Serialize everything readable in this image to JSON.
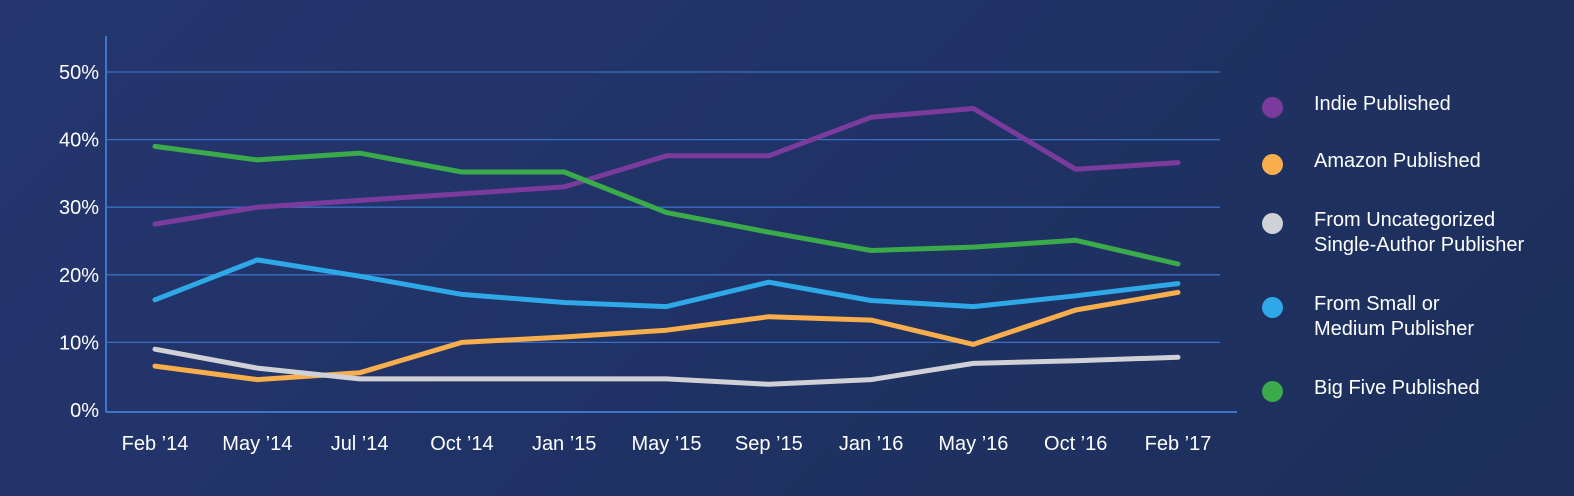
{
  "chart_data": {
    "type": "line",
    "categories": [
      "Feb ’14",
      "May ’14",
      "Jul ’14",
      "Oct ’14",
      "Jan ’15",
      "May ’15",
      "Sep ’15",
      "Jan ’16",
      "May ’16",
      "Oct ’16",
      "Feb ’17"
    ],
    "y_ticks": [
      "0%",
      "10%",
      "20%",
      "30%",
      "40%",
      "50%"
    ],
    "ylim": [
      0,
      55
    ],
    "grid": true,
    "legend_position": "right",
    "series": [
      {
        "name": "Indie Published",
        "color": "#7a3b9c",
        "values": [
          27.5,
          30,
          31,
          32,
          33,
          37.6,
          37.6,
          43.3,
          44.6,
          35.6,
          36.6
        ]
      },
      {
        "name": "Amazon Published",
        "color": "#f8ae4c",
        "values": [
          6.5,
          4.5,
          5.5,
          10,
          10.8,
          11.8,
          13.8,
          13.3,
          9.7,
          14.8,
          17.4
        ]
      },
      {
        "name": "From Uncategorized Single-Author Publisher",
        "label_lines": [
          "From Uncategorized",
          "Single-Author Publisher"
        ],
        "color": "#cfd1d6",
        "values": [
          9,
          6.2,
          4.6,
          4.6,
          4.6,
          4.6,
          3.8,
          4.5,
          6.9,
          7.3,
          7.8
        ]
      },
      {
        "name": "From Small or Medium Publisher",
        "label_lines": [
          "From Small or",
          "Medium Publisher"
        ],
        "color": "#2ea8e6",
        "values": [
          16.3,
          22.2,
          19.8,
          17.1,
          15.9,
          15.3,
          18.9,
          16.2,
          15.3,
          16.9,
          18.7
        ]
      },
      {
        "name": "Big Five Published",
        "color": "#3aaa4a",
        "values": [
          39,
          37,
          38,
          35.2,
          35.2,
          29.2,
          26.3,
          23.6,
          24.1,
          25.1,
          21.6
        ]
      }
    ]
  }
}
